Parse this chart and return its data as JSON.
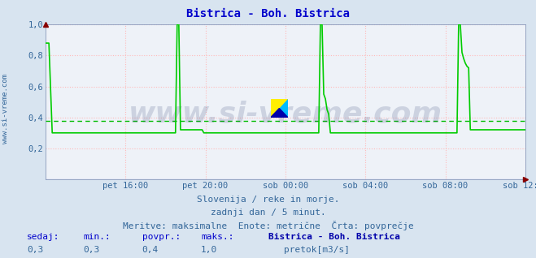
{
  "title": "Bistrica - Boh. Bistrica",
  "title_color": "#0000cc",
  "title_fontsize": 10,
  "bg_color": "#d8e4f0",
  "plot_bg_color": "#eef2f8",
  "grid_color": "#ffbbbb",
  "avg_line_color": "#00bb00",
  "avg_value": 0.375,
  "line_color": "#00cc00",
  "ylim": [
    0.0,
    1.0
  ],
  "ytick_vals": [
    0.0,
    0.2,
    0.4,
    0.6,
    0.8,
    1.0
  ],
  "ytick_labels": [
    "",
    "0,2",
    "0,4",
    "0,6",
    "0,8",
    "1,0"
  ],
  "tick_color": "#336699",
  "x_labels": [
    "pet 16:00",
    "pet 20:00",
    "sob 00:00",
    "sob 04:00",
    "sob 08:00",
    "sob 12:00"
  ],
  "subtitle1": "Slovenija / reke in morje.",
  "subtitle2": "zadnji dan / 5 minut.",
  "subtitle3": "Meritve: maksimalne  Enote: metrične  Črta: povprečje",
  "subtitle_color": "#336699",
  "subtitle_fontsize": 8,
  "footer_label_color": "#0000cc",
  "footer_value_color": "#336699",
  "footer_bold_color": "#0000aa",
  "watermark": "www.si-vreme.com",
  "watermark_color": "#334477",
  "watermark_alpha": 0.18,
  "watermark_fontsize": 26,
  "sedaj": "0,3",
  "min_val": "0,3",
  "povpr": "0,4",
  "maks": "1,0",
  "legend_label": "pretok[m3/s]",
  "legend_color": "#00cc00",
  "side_label": "www.si-vreme.com",
  "side_label_color": "#336699",
  "side_label_fontsize": 6.5
}
